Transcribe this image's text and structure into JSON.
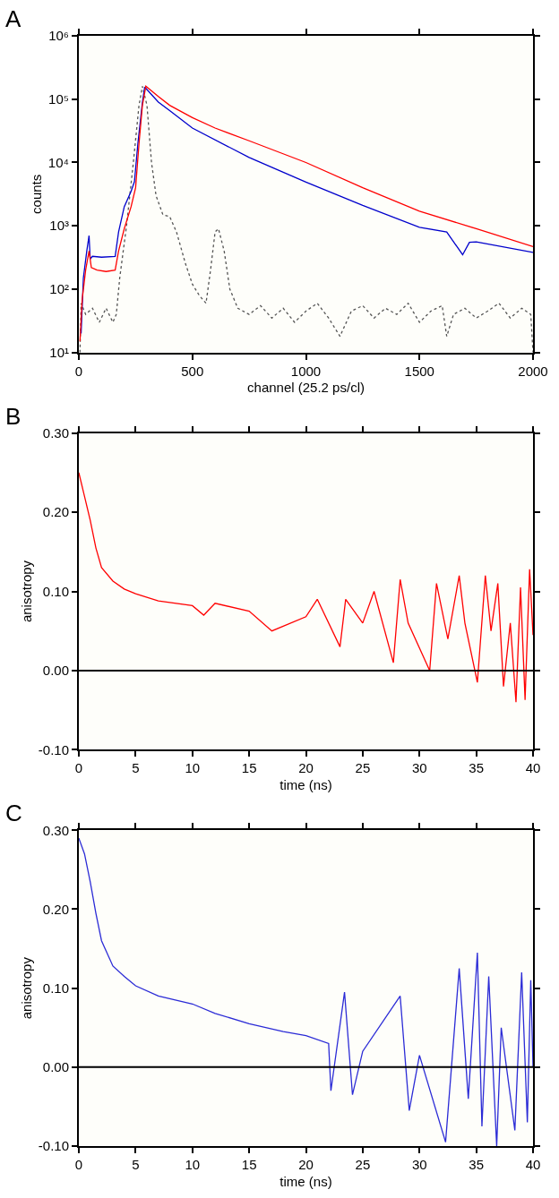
{
  "chart_data": [
    {
      "type": "line",
      "title": "A",
      "xlabel": "channel (25.2 ps/cl)",
      "ylabel": "counts",
      "log": "y",
      "xlim": [
        0,
        2000
      ],
      "xticks": [
        0,
        500,
        1000,
        1500,
        2000
      ],
      "ylim": [
        10,
        1000000
      ],
      "yticks": [
        {
          "value": 10,
          "label": "10¹"
        },
        {
          "value": 100,
          "label": "10²"
        },
        {
          "value": 1000,
          "label": "10³"
        },
        {
          "value": 10000,
          "label": "10⁴"
        },
        {
          "value": 100000,
          "label": "10⁵"
        },
        {
          "value": 1000000,
          "label": "10⁶"
        }
      ],
      "series": [
        {
          "color": "#555555",
          "line_style": "dotted",
          "x": [
            5,
            10,
            30,
            60,
            90,
            120,
            150,
            165,
            180,
            210,
            240,
            265,
            280,
            300,
            320,
            340,
            370,
            400,
            430,
            470,
            500,
            530,
            560,
            580,
            600,
            615,
            640,
            665,
            700,
            750,
            800,
            850,
            900,
            950,
            1000,
            1050,
            1100,
            1150,
            1200,
            1250,
            1300,
            1350,
            1400,
            1450,
            1500,
            1550,
            1600,
            1620,
            1650,
            1700,
            1750,
            1800,
            1850,
            1900,
            1950,
            1990,
            2000
          ],
          "values": [
            10,
            60,
            40,
            50,
            30,
            50,
            30,
            40,
            150,
            1000,
            10000,
            80000,
            160000,
            80000,
            10000,
            3000,
            1500,
            1400,
            800,
            250,
            120,
            80,
            60,
            200,
            800,
            900,
            400,
            100,
            50,
            40,
            55,
            35,
            50,
            30,
            45,
            60,
            35,
            18,
            45,
            55,
            35,
            50,
            40,
            60,
            30,
            45,
            55,
            18,
            40,
            50,
            35,
            45,
            60,
            35,
            50,
            40,
            10
          ]
        },
        {
          "color": "#0000cc",
          "line_style": "solid",
          "x": [
            10,
            20,
            35,
            45,
            50,
            60,
            100,
            160,
            175,
            200,
            230,
            245,
            260,
            280,
            290,
            350,
            400,
            500,
            750,
            1000,
            1250,
            1500,
            1620,
            1690,
            1720,
            1750,
            2000
          ],
          "values": [
            20,
            150,
            400,
            700,
            300,
            330,
            320,
            330,
            800,
            2000,
            3500,
            5000,
            20000,
            90000,
            155000,
            90000,
            66000,
            35000,
            12000,
            4900,
            2100,
            950,
            800,
            350,
            550,
            560,
            380
          ]
        },
        {
          "color": "#ff0000",
          "line_style": "solid",
          "x": [
            5,
            15,
            30,
            45,
            55,
            80,
            120,
            160,
            175,
            200,
            230,
            250,
            265,
            280,
            295,
            350,
            400,
            500,
            600,
            750,
            1000,
            1250,
            1500,
            1750,
            2000
          ],
          "values": [
            15,
            70,
            200,
            400,
            220,
            200,
            190,
            200,
            400,
            900,
            2000,
            4000,
            20000,
            80000,
            160000,
            110000,
            80000,
            51000,
            35000,
            22000,
            10000,
            4000,
            1700,
            900,
            470
          ]
        }
      ]
    },
    {
      "type": "line",
      "title": "B",
      "xlabel": "time (ns)",
      "ylabel": "anisotropy",
      "xlim": [
        0,
        40
      ],
      "xticks": [
        0,
        5,
        10,
        15,
        20,
        25,
        30,
        35,
        40
      ],
      "ylim": [
        -0.1,
        0.3
      ],
      "yticks": [
        {
          "value": -0.1,
          "label": "-0.10"
        },
        {
          "value": 0,
          "label": "0.00"
        },
        {
          "value": 0.1,
          "label": "0.10"
        },
        {
          "value": 0.2,
          "label": "0.20"
        },
        {
          "value": 0.3,
          "label": "0.30"
        }
      ],
      "ref_lines": [
        {
          "axis": "y",
          "value": 0,
          "color": "#000000"
        }
      ],
      "series": [
        {
          "color": "#ff0000",
          "line_style": "solid",
          "x": [
            0,
            0.5,
            1,
            1.5,
            2,
            3,
            4,
            5,
            7,
            10,
            11,
            12,
            15,
            17,
            20,
            21,
            23,
            23.5,
            25,
            26,
            27.7,
            28.3,
            29,
            30.9,
            31.5,
            32.5,
            33.5,
            34,
            35.1,
            35.8,
            36.3,
            36.9,
            37.4,
            38,
            38.5,
            38.9,
            39.3,
            39.7,
            40
          ],
          "values": [
            0.25,
            0.22,
            0.19,
            0.155,
            0.13,
            0.113,
            0.103,
            0.097,
            0.088,
            0.082,
            0.07,
            0.085,
            0.075,
            0.05,
            0.068,
            0.09,
            0.03,
            0.09,
            0.06,
            0.1,
            0.01,
            0.115,
            0.06,
            0.0,
            0.11,
            0.04,
            0.12,
            0.06,
            -0.015,
            0.12,
            0.05,
            0.11,
            -0.02,
            0.06,
            -0.04,
            0.105,
            -0.037,
            0.128,
            0.045
          ]
        }
      ]
    },
    {
      "type": "line",
      "title": "C",
      "xlabel": "time (ns)",
      "ylabel": "anisotropy",
      "xlim": [
        0,
        40
      ],
      "xticks": [
        0,
        5,
        10,
        15,
        20,
        25,
        30,
        35,
        40
      ],
      "ylim": [
        -0.1,
        0.3
      ],
      "yticks": [
        {
          "value": -0.1,
          "label": "-0.10"
        },
        {
          "value": 0,
          "label": "0.00"
        },
        {
          "value": 0.1,
          "label": "0.10"
        },
        {
          "value": 0.2,
          "label": "0.20"
        },
        {
          "value": 0.3,
          "label": "0.30"
        }
      ],
      "ref_lines": [
        {
          "axis": "y",
          "value": 0,
          "color": "#000000"
        }
      ],
      "series": [
        {
          "color": "#2b2bd6",
          "line_style": "solid",
          "x": [
            0,
            0.5,
            1,
            1.5,
            2,
            3,
            4,
            5,
            7,
            10,
            12,
            15,
            18,
            20,
            22,
            22.2,
            23.4,
            24.1,
            25,
            28.3,
            29.1,
            30,
            32.3,
            33.5,
            34.3,
            35.1,
            35.5,
            36.1,
            36.8,
            37.2,
            38.4,
            39,
            39.5,
            39.8,
            40
          ],
          "values": [
            0.29,
            0.27,
            0.235,
            0.195,
            0.16,
            0.128,
            0.115,
            0.103,
            0.09,
            0.08,
            0.068,
            0.055,
            0.045,
            0.04,
            0.03,
            -0.03,
            0.095,
            -0.035,
            0.02,
            0.09,
            -0.055,
            0.015,
            -0.095,
            0.125,
            -0.04,
            0.145,
            -0.075,
            0.115,
            -0.1,
            0.05,
            -0.08,
            0.12,
            -0.07,
            0.11,
            0.0
          ]
        }
      ]
    }
  ]
}
